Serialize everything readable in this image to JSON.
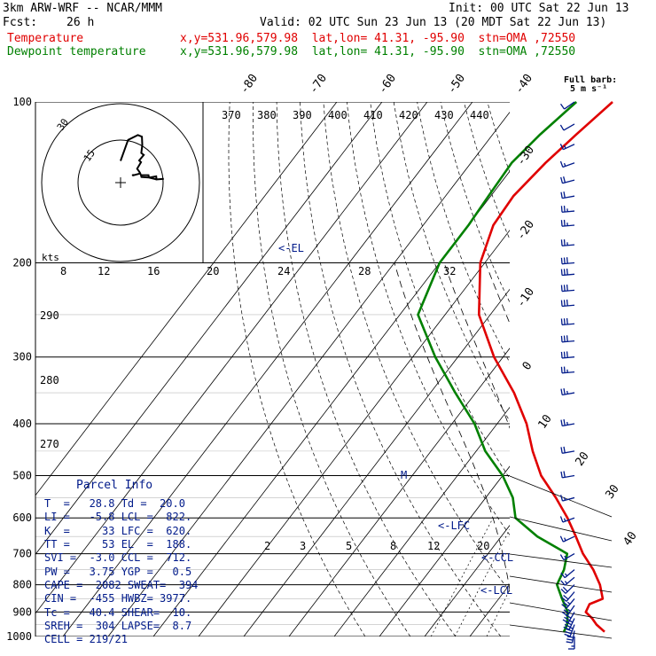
{
  "header": {
    "model": "3km ARW-WRF -- NCAR/MMM",
    "init": "Init: 00 UTC Sat 22 Jun 13",
    "fcst_label": "Fcst:",
    "fcst_value": "26 h",
    "valid": "Valid: 02 UTC Sun 23 Jun 13 (20 MDT Sat 22 Jun 13)",
    "temp_name": "Temperature",
    "dew_name": "Dewpoint temperature",
    "location": "x,y=531.96,579.98  lat,lon= 41.31, -95.90  stn=OMA ,72550"
  },
  "barb_legend": {
    "title": "Full barb:",
    "unit": "5 m s⁻¹"
  },
  "colors": {
    "temperature": "#e00000",
    "dewpoint": "#008000",
    "annotation": "#001a8a",
    "grid": "#000000"
  },
  "parcel": {
    "title": "Parcel Info",
    "rows": [
      "T  =   28.8 Td =  20.0",
      "LI =   -5.8 LCL =  822.",
      "K  =     33 LFC =  620.",
      "TT =     53 EL  =  188.",
      "SVI =  -3.0 CCL =  712.",
      "PW =   3.75 YGP =   0.5",
      "CAPE =  2082 SWEAT=  394",
      "CIN =  -455 HWBZ= 3977.",
      "Tc =   40.4 SHEAR=  10.",
      "SREH =  304 LAPSE=  8.7",
      "CELL = 219/21"
    ]
  },
  "hodograph": {
    "unit": "kts",
    "ring_labels": [
      "15",
      "30"
    ]
  },
  "chart_data": {
    "type": "line",
    "title": "",
    "y_axis": {
      "label": "",
      "scale": "log",
      "range": [
        1000,
        100
      ],
      "ticks": [
        100,
        200,
        300,
        400,
        500,
        600,
        700,
        800,
        900,
        1000
      ]
    },
    "x_axis": {
      "label": "",
      "skewed": true,
      "range": [
        -40,
        40
      ]
    },
    "isotherm_labels": [
      "-80",
      "-70",
      "-60",
      "-50",
      "-40",
      "-30",
      "-20",
      "-10",
      "0",
      "10",
      "20",
      "30",
      "40"
    ],
    "theta_labels": [
      "370",
      "380",
      "390",
      "400",
      "410",
      "420",
      "430",
      "440"
    ],
    "theta_left_labels": [
      "290",
      "280",
      "270"
    ],
    "mixing_upper_labels": [
      "8",
      "12",
      "16",
      "20",
      "24",
      "28",
      "32"
    ],
    "mixing_lower_labels": [
      "2",
      "3",
      "5",
      "8",
      "12",
      "20"
    ],
    "annotations": [
      "<-EL",
      "<-LFC",
      "<-CCL",
      "<-LCL",
      "M"
    ],
    "grid": true,
    "series": [
      {
        "name": "Temperature",
        "p": [
          980,
          950,
          925,
          900,
          870,
          850,
          800,
          750,
          700,
          650,
          600,
          550,
          500,
          450,
          400,
          350,
          300,
          250,
          200,
          170,
          150,
          130,
          115,
          100
        ],
        "T": [
          29,
          26,
          24,
          21.5,
          21,
          23,
          20,
          16,
          11,
          6.5,
          1.5,
          -4.5,
          -11.5,
          -17.5,
          -23.5,
          -31.5,
          -42,
          -52.5,
          -61,
          -64.5,
          -65,
          -63.5,
          -61.5,
          -59
        ]
      },
      {
        "name": "Dewpoint temperature",
        "p": [
          980,
          950,
          900,
          850,
          800,
          750,
          700,
          650,
          600,
          550,
          500,
          450,
          400,
          350,
          300,
          250,
          200,
          170,
          150,
          130,
          115,
          100
        ],
        "T": [
          20,
          19.5,
          17.5,
          14,
          10.5,
          9.5,
          7.5,
          -2,
          -10,
          -14,
          -20,
          -28,
          -35,
          -44.5,
          -55,
          -66,
          -70,
          -70,
          -70.5,
          -71,
          -69.5,
          -67
        ]
      }
    ],
    "winds": [
      {
        "p": 1000,
        "dir": 180,
        "spd": 15
      },
      {
        "p": 975,
        "dir": 190,
        "spd": 30
      },
      {
        "p": 950,
        "dir": 200,
        "spd": 35
      },
      {
        "p": 925,
        "dir": 205,
        "spd": 35
      },
      {
        "p": 900,
        "dir": 210,
        "spd": 30
      },
      {
        "p": 875,
        "dir": 215,
        "spd": 25
      },
      {
        "p": 850,
        "dir": 220,
        "spd": 25
      },
      {
        "p": 825,
        "dir": 220,
        "spd": 20
      },
      {
        "p": 800,
        "dir": 225,
        "spd": 20
      },
      {
        "p": 775,
        "dir": 230,
        "spd": 15
      },
      {
        "p": 750,
        "dir": 230,
        "spd": 15
      },
      {
        "p": 700,
        "dir": 240,
        "spd": 15
      },
      {
        "p": 650,
        "dir": 245,
        "spd": 15
      },
      {
        "p": 600,
        "dir": 250,
        "spd": 15
      },
      {
        "p": 550,
        "dir": 255,
        "spd": 15
      },
      {
        "p": 500,
        "dir": 260,
        "spd": 20
      },
      {
        "p": 450,
        "dir": 260,
        "spd": 20
      },
      {
        "p": 400,
        "dir": 260,
        "spd": 25
      },
      {
        "p": 350,
        "dir": 260,
        "spd": 25
      },
      {
        "p": 320,
        "dir": 265,
        "spd": 25
      },
      {
        "p": 300,
        "dir": 265,
        "spd": 30
      },
      {
        "p": 280,
        "dir": 265,
        "spd": 30
      },
      {
        "p": 260,
        "dir": 265,
        "spd": 30
      },
      {
        "p": 240,
        "dir": 265,
        "spd": 30
      },
      {
        "p": 225,
        "dir": 265,
        "spd": 30
      },
      {
        "p": 210,
        "dir": 265,
        "spd": 30
      },
      {
        "p": 200,
        "dir": 265,
        "spd": 30
      },
      {
        "p": 185,
        "dir": 265,
        "spd": 25
      },
      {
        "p": 170,
        "dir": 265,
        "spd": 25
      },
      {
        "p": 160,
        "dir": 265,
        "spd": 25
      },
      {
        "p": 150,
        "dir": 260,
        "spd": 20
      },
      {
        "p": 140,
        "dir": 255,
        "spd": 20
      },
      {
        "p": 130,
        "dir": 250,
        "spd": 15
      },
      {
        "p": 120,
        "dir": 245,
        "spd": 15
      },
      {
        "p": 110,
        "dir": 240,
        "spd": 10
      },
      {
        "p": 100,
        "dir": 235,
        "spd": 10
      }
    ]
  }
}
